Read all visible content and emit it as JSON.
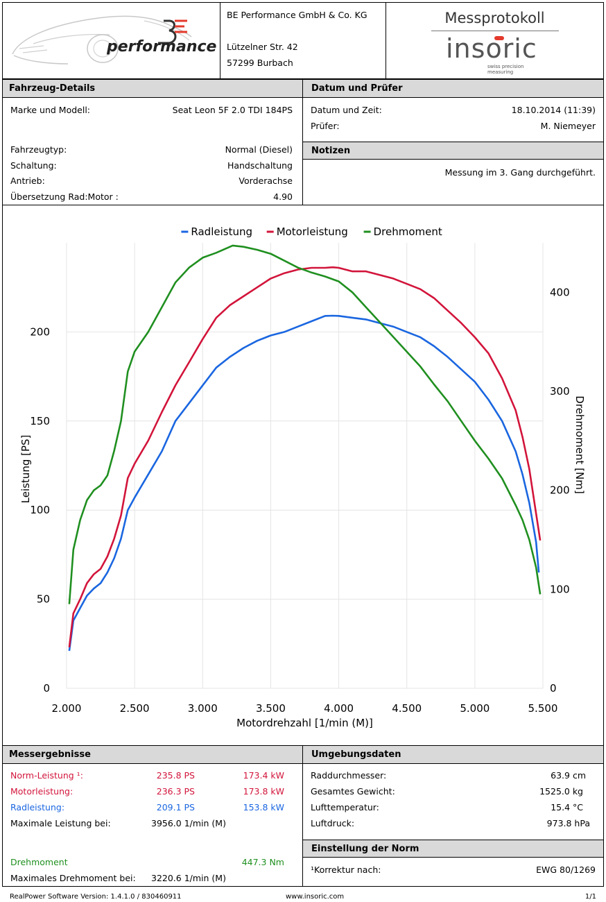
{
  "header": {
    "company_name": "BE Performance GmbH & Co. KG",
    "street": "Lützelner Str. 42",
    "city": "57299 Burbach",
    "logo_text": "performance",
    "logo_mark": "BE",
    "protocol_title": "Messprotokoll",
    "brand_name": "insoric",
    "brand_tagline": "swiss precision measuring"
  },
  "vehicle": {
    "title": "Fahrzeug-Details",
    "rows": [
      {
        "label": "Marke und Modell:",
        "value": "Seat Leon 5F 2.0 TDI 184PS"
      },
      {
        "label": "Fahrzeugtyp:",
        "value": "Normal (Diesel)"
      },
      {
        "label": "Schaltung:",
        "value": "Handschaltung"
      },
      {
        "label": "Antrieb:",
        "value": "Vorderachse"
      },
      {
        "label": "Übersetzung Rad:Motor :",
        "value": "4.90"
      }
    ]
  },
  "date_tester": {
    "title": "Datum und Prüfer",
    "rows": [
      {
        "label": "Datum und Zeit:",
        "value": "18.10.2014 (11:39)"
      },
      {
        "label": "Prüfer:",
        "value": "M. Niemeyer"
      }
    ]
  },
  "notes": {
    "title": "Notizen",
    "text": "Messung im 3. Gang durchgeführt."
  },
  "chart_data": {
    "type": "line",
    "title": "",
    "xlabel": "Motordrehzahl [1/min (M)]",
    "ylabel": "Leistung [PS]",
    "y2label": "Drehmoment [Nm]",
    "xlim": [
      2000,
      5500
    ],
    "ylim": [
      0,
      250
    ],
    "y2lim": [
      0,
      450
    ],
    "xticks": [
      "2.000",
      "2.500",
      "3.000",
      "3.500",
      "4.000",
      "4.500",
      "5.000",
      "5.500"
    ],
    "xtick_values": [
      2000,
      2500,
      3000,
      3500,
      4000,
      4500,
      5000,
      5500
    ],
    "yticks": [
      "0",
      "50",
      "100",
      "150",
      "200"
    ],
    "ytick_values": [
      0,
      50,
      100,
      150,
      200
    ],
    "y2ticks": [
      "0",
      "100",
      "200",
      "300",
      "400"
    ],
    "y2tick_values": [
      0,
      100,
      200,
      300,
      400
    ],
    "legend_position": "top-center",
    "grid": true,
    "series": [
      {
        "name": "Radleistung",
        "color": "#1a66e0",
        "axis": "left",
        "x": [
          2020,
          2050,
          2100,
          2150,
          2200,
          2250,
          2300,
          2350,
          2400,
          2450,
          2500,
          2600,
          2700,
          2800,
          2900,
          3000,
          3100,
          3200,
          3300,
          3400,
          3500,
          3600,
          3700,
          3800,
          3900,
          3956,
          4000,
          4100,
          4200,
          4300,
          4400,
          4500,
          4600,
          4700,
          4800,
          4900,
          5000,
          5100,
          5200,
          5300,
          5350,
          5400,
          5450,
          5470
        ],
        "y": [
          21,
          38,
          45,
          52,
          56,
          59,
          65,
          73,
          84,
          100,
          107,
          120,
          133,
          150,
          160,
          170,
          180,
          186,
          191,
          195,
          198,
          200,
          203,
          206,
          209,
          209.1,
          209,
          208,
          207,
          205,
          203,
          200,
          197,
          192,
          186,
          179,
          172,
          162,
          150,
          133,
          120,
          104,
          82,
          65
        ]
      },
      {
        "name": "Motorleistung",
        "color": "#d2143a",
        "axis": "left",
        "x": [
          2020,
          2050,
          2100,
          2150,
          2200,
          2250,
          2300,
          2350,
          2400,
          2450,
          2500,
          2600,
          2700,
          2800,
          2900,
          3000,
          3100,
          3200,
          3300,
          3400,
          3500,
          3600,
          3700,
          3800,
          3900,
          3956,
          4000,
          4100,
          4200,
          4300,
          4400,
          4500,
          4600,
          4700,
          4800,
          4900,
          5000,
          5100,
          5200,
          5300,
          5350,
          5400,
          5450,
          5480
        ],
        "y": [
          23,
          42,
          50,
          59,
          64,
          67,
          74,
          84,
          97,
          118,
          126,
          139,
          155,
          170,
          183,
          196,
          208,
          215,
          220,
          225,
          230,
          233,
          235,
          236,
          236,
          236.3,
          236,
          234,
          234,
          232,
          230,
          227,
          224,
          219,
          212,
          205,
          197,
          188,
          174,
          156,
          141,
          123,
          98,
          83
        ]
      },
      {
        "name": "Drehmoment",
        "color": "#1f8f1f",
        "axis": "right",
        "x": [
          2020,
          2050,
          2100,
          2150,
          2200,
          2250,
          2300,
          2350,
          2400,
          2450,
          2500,
          2600,
          2700,
          2800,
          2900,
          3000,
          3100,
          3220.6,
          3300,
          3400,
          3500,
          3600,
          3700,
          3800,
          3900,
          4000,
          4100,
          4200,
          4300,
          4400,
          4500,
          4600,
          4700,
          4800,
          4900,
          5000,
          5100,
          5200,
          5300,
          5350,
          5400,
          5450,
          5480
        ],
        "y": [
          85,
          140,
          170,
          190,
          200,
          205,
          215,
          240,
          270,
          320,
          340,
          360,
          385,
          410,
          425,
          435,
          440,
          447.3,
          446,
          443,
          439,
          432,
          425,
          420,
          416,
          411,
          400,
          385,
          370,
          355,
          340,
          325,
          307,
          290,
          270,
          250,
          232,
          212,
          185,
          170,
          150,
          122,
          95
        ]
      }
    ]
  },
  "results": {
    "title": "Messergebnisse",
    "norm_label": "Norm-Leistung ¹:",
    "norm_ps": "235.8 PS",
    "norm_kw": "173.4 kW",
    "motor_label": "Motorleistung:",
    "motor_ps": "236.3 PS",
    "motor_kw": "173.8 kW",
    "rad_label": "Radleistung:",
    "rad_ps": "209.1 PS",
    "rad_kw": "153.8 kW",
    "max_power_label": "Maximale Leistung bei:",
    "max_power_rpm": "3956.0 1/min (M)",
    "torque_label": "Drehmoment",
    "torque_value": "447.3 Nm",
    "max_torque_label": "Maximales Drehmoment bei:",
    "max_torque_rpm": "3220.6 1/min (M)"
  },
  "environment": {
    "title": "Umgebungsdaten",
    "rows": [
      {
        "label": "Raddurchmesser:",
        "value": "63.9 cm"
      },
      {
        "label": "Gesamtes Gewicht:",
        "value": "1525.0 kg"
      },
      {
        "label": "Lufttemperatur:",
        "value": "15.4 °C"
      },
      {
        "label": "Luftdruck:",
        "value": "973.8 hPa"
      }
    ]
  },
  "norm": {
    "title": "Einstellung der Norm",
    "label": "¹Korrektur nach:",
    "value": "EWG 80/1269"
  },
  "footer": {
    "software": "RealPower Software Version: 1.4.1.0 / 830460911",
    "website": "www.insoric.com",
    "page": "1/1"
  }
}
